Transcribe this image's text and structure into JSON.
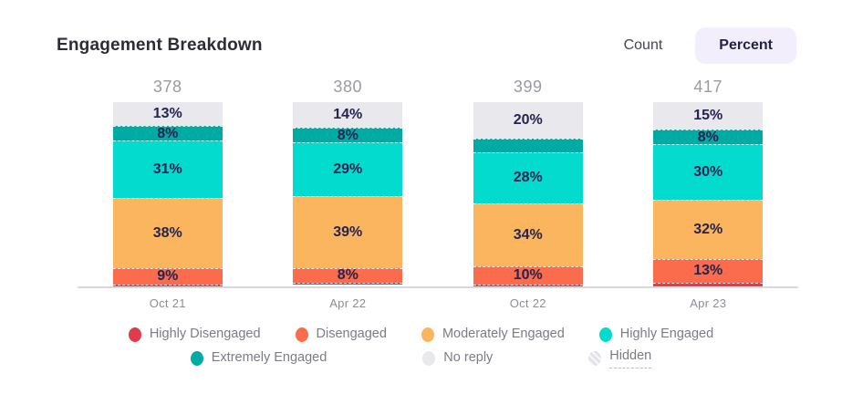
{
  "header": {
    "title": "Engagement Breakdown",
    "toggle": {
      "count_label": "Count",
      "percent_label": "Percent",
      "active": "Percent"
    }
  },
  "chart_data": {
    "type": "bar",
    "stacked": true,
    "value_format": "percent",
    "title": "Engagement Breakdown",
    "categories": [
      "Oct 21",
      "Apr 22",
      "Oct 22",
      "Apr 23"
    ],
    "bar_totals": [
      "378",
      "380",
      "399",
      "417"
    ],
    "ylim": [
      0,
      100
    ],
    "grid": false,
    "legend_position": "bottom",
    "series": [
      {
        "name": "Highly Disengaged",
        "color": "#e03c4c",
        "values": [
          1,
          1,
          1,
          2
        ],
        "labels": [
          "",
          "",
          "",
          ""
        ]
      },
      {
        "name": "Disengaged",
        "color": "#fa6c4c",
        "values": [
          9,
          8,
          10,
          13
        ],
        "labels": [
          "9%",
          "8%",
          "10%",
          "13%"
        ]
      },
      {
        "name": "Moderately Engaged",
        "color": "#fcb55f",
        "values": [
          38,
          39,
          34,
          32
        ],
        "labels": [
          "38%",
          "39%",
          "34%",
          "32%"
        ]
      },
      {
        "name": "Highly Engaged",
        "color": "#04dbcf",
        "values": [
          31,
          29,
          28,
          30
        ],
        "labels": [
          "31%",
          "29%",
          "28%",
          "30%"
        ]
      },
      {
        "name": "Extremely Engaged",
        "color": "#00aba4",
        "values": [
          8,
          8,
          7,
          8
        ],
        "labels": [
          "8%",
          "8%",
          "",
          "8%"
        ]
      },
      {
        "name": "No reply",
        "color": "#e9e8ec",
        "values": [
          13,
          14,
          20,
          15
        ],
        "labels": [
          "13%",
          "14%",
          "20%",
          "15%"
        ]
      }
    ],
    "legend": [
      {
        "label": "Highly Disengaged",
        "color": "#e03c4c",
        "type": "solid"
      },
      {
        "label": "Disengaged",
        "color": "#fa6c4c",
        "type": "solid"
      },
      {
        "label": "Moderately Engaged",
        "color": "#fcb55f",
        "type": "solid"
      },
      {
        "label": "Highly Engaged",
        "color": "#04dbcf",
        "type": "solid"
      },
      {
        "label": "Extremely Engaged",
        "color": "#00aba4",
        "type": "solid"
      },
      {
        "label": "No reply",
        "color": "#e9e8ec",
        "type": "solid"
      },
      {
        "label": "Hidden",
        "color": "#e4e4e8",
        "type": "hatched"
      }
    ],
    "legend_rows": [
      4,
      3
    ]
  }
}
